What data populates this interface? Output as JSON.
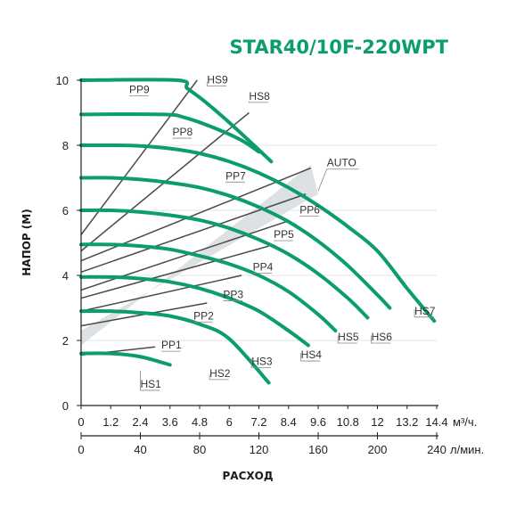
{
  "chart_data": {
    "type": "line",
    "title": "STAR40/10F-220WPT",
    "xlabel": "РАСХОД",
    "ylabel": "НАПОР (М)",
    "x_unit": "м³/ч.",
    "x2_unit": "л/мин.",
    "xlim": [
      0,
      14.4
    ],
    "ylim": [
      0,
      10
    ],
    "x_ticks": [
      "0",
      "1.2",
      "2.4",
      "3.6",
      "4.8",
      "6",
      "7.2",
      "8.4",
      "9.6",
      "10.8",
      "12",
      "13.2",
      "14.4"
    ],
    "x2_ticks": [
      "0",
      "40",
      "80",
      "120",
      "160",
      "200",
      "240"
    ],
    "x2_values": [
      0,
      40,
      80,
      120,
      160,
      200,
      240
    ],
    "y_ticks": [
      "0",
      "2",
      "4",
      "6",
      "8",
      "10"
    ],
    "auto_label": "AUTO",
    "auto_region": [
      [
        0,
        1.85
      ],
      [
        9.3,
        7.4
      ],
      [
        9.6,
        6.5
      ],
      [
        0,
        2.3
      ]
    ],
    "hs_series": [
      {
        "name": "HS1",
        "points": [
          [
            0,
            1.6
          ],
          [
            1.2,
            1.6
          ],
          [
            2.4,
            1.5
          ],
          [
            3.6,
            1.25
          ]
        ]
      },
      {
        "name": "HS2",
        "points": [
          [
            0,
            2.9
          ],
          [
            1.2,
            2.9
          ],
          [
            2.4,
            2.85
          ],
          [
            3.6,
            2.75
          ],
          [
            4.8,
            2.5
          ],
          [
            6,
            2.05
          ],
          [
            7.6,
            0.7
          ]
        ]
      },
      {
        "name": "HS3",
        "points": [
          [
            0,
            3.95
          ],
          [
            1.2,
            3.95
          ],
          [
            2.4,
            3.9
          ],
          [
            3.6,
            3.8
          ],
          [
            4.8,
            3.6
          ],
          [
            6,
            3.3
          ],
          [
            7.2,
            2.9
          ],
          [
            8.4,
            2.3
          ],
          [
            9.2,
            1.85
          ]
        ]
      },
      {
        "name": "HS4",
        "points": [
          [
            0,
            4.95
          ],
          [
            1.2,
            4.95
          ],
          [
            2.4,
            4.9
          ],
          [
            3.6,
            4.8
          ],
          [
            4.8,
            4.6
          ],
          [
            6,
            4.35
          ],
          [
            7.2,
            4
          ],
          [
            8.4,
            3.5
          ],
          [
            9.6,
            2.8
          ],
          [
            10.3,
            2.3
          ]
        ]
      },
      {
        "name": "HS5",
        "points": [
          [
            0,
            6
          ],
          [
            1.2,
            6
          ],
          [
            2.4,
            5.95
          ],
          [
            3.6,
            5.85
          ],
          [
            4.8,
            5.7
          ],
          [
            6,
            5.45
          ],
          [
            7.2,
            5.1
          ],
          [
            8.4,
            4.65
          ],
          [
            9.6,
            4.05
          ],
          [
            10.8,
            3.3
          ],
          [
            11.6,
            2.7
          ]
        ]
      },
      {
        "name": "HS6",
        "points": [
          [
            0,
            7
          ],
          [
            1.2,
            7
          ],
          [
            2.4,
            6.95
          ],
          [
            3.6,
            6.85
          ],
          [
            4.8,
            6.7
          ],
          [
            6,
            6.45
          ],
          [
            7.2,
            6.1
          ],
          [
            8.4,
            5.65
          ],
          [
            9.6,
            5.05
          ],
          [
            10.8,
            4.3
          ],
          [
            12,
            3.4
          ],
          [
            12.5,
            3.0
          ]
        ]
      },
      {
        "name": "HS7",
        "points": [
          [
            0,
            8
          ],
          [
            1.2,
            8
          ],
          [
            2.4,
            7.98
          ],
          [
            3.6,
            7.9
          ],
          [
            4.8,
            7.75
          ],
          [
            6,
            7.5
          ],
          [
            7.2,
            7.15
          ],
          [
            8.4,
            6.7
          ],
          [
            9.6,
            6.15
          ],
          [
            10.8,
            5.5
          ],
          [
            12,
            4.75
          ],
          [
            13.2,
            3.6
          ],
          [
            14.3,
            2.6
          ]
        ]
      },
      {
        "name": "HS8",
        "points": [
          [
            0,
            8.95
          ],
          [
            3.3,
            8.95
          ],
          [
            4.2,
            8.85
          ],
          [
            5.5,
            8.5
          ],
          [
            6.5,
            8.15
          ],
          [
            7.2,
            7.8
          ]
        ]
      },
      {
        "name": "HS9",
        "points": [
          [
            0,
            10
          ],
          [
            3.9,
            10
          ],
          [
            4.3,
            9.75
          ],
          [
            5.0,
            9.35
          ],
          [
            6.0,
            8.7
          ],
          [
            7.0,
            8.0
          ],
          [
            7.7,
            7.5
          ]
        ]
      }
    ],
    "hs_label_positions": {
      "HS1": {
        "point": [
          2.4,
          1.08
        ],
        "text": [
          2.4,
          0.55
        ]
      },
      "HS2": {
        "point": [
          5.2,
          0.95
        ],
        "text": [
          5.2,
          0.88
        ]
      },
      "HS3": {
        "point": [
          6.9,
          1.45
        ],
        "text": [
          6.9,
          1.25
        ]
      },
      "HS4": {
        "point": [
          8.9,
          1.62
        ],
        "text": [
          8.9,
          1.45
        ]
      },
      "HS5": {
        "point": [
          10.4,
          2.15
        ],
        "text": [
          10.4,
          2.0
        ]
      },
      "HS6": {
        "point": [
          11.75,
          2.15
        ],
        "text": [
          11.75,
          2.0
        ]
      },
      "HS7": {
        "point": [
          13.5,
          2.95
        ],
        "text": [
          13.5,
          2.8
        ]
      },
      "HS8": {
        "point": [
          6.8,
          9.35
        ],
        "text": [
          6.8,
          9.4
        ]
      },
      "HS9": {
        "point": [
          5.1,
          9.95
        ],
        "text": [
          5.1,
          9.9
        ]
      }
    },
    "pp_series": [
      {
        "name": "PP1",
        "points": [
          [
            0,
            1.55
          ],
          [
            3.0,
            1.8
          ]
        ]
      },
      {
        "name": "PP2",
        "points": [
          [
            0,
            2.45
          ],
          [
            5.1,
            3.15
          ]
        ]
      },
      {
        "name": "PP3",
        "points": [
          [
            0,
            2.9
          ],
          [
            6.5,
            4.0
          ]
        ]
      },
      {
        "name": "PP4",
        "points": [
          [
            0,
            3.3
          ],
          [
            7.6,
            4.9
          ]
        ]
      },
      {
        "name": "PP5",
        "points": [
          [
            0,
            3.55
          ],
          [
            8.3,
            5.65
          ]
        ]
      },
      {
        "name": "PP6",
        "points": [
          [
            0,
            4.1
          ],
          [
            9.1,
            6.5
          ]
        ]
      },
      {
        "name": "PP7",
        "points": [
          [
            0,
            4.45
          ],
          [
            9.3,
            7.3
          ]
        ]
      },
      {
        "name": "PP8",
        "points": [
          [
            0,
            4.75
          ],
          [
            6.8,
            9.0
          ]
        ]
      },
      {
        "name": "PP9",
        "points": [
          [
            0,
            5.25
          ],
          [
            4.7,
            10.0
          ]
        ]
      }
    ],
    "pp_label_positions": {
      "PP1": {
        "point": [
          3.2,
          1.75
        ],
        "text": [
          3.25,
          1.75
        ]
      },
      "PP2": {
        "point": [
          4.5,
          2.8
        ],
        "text": [
          4.55,
          2.65
        ]
      },
      "PP3": {
        "point": [
          5.5,
          3.5
        ],
        "text": [
          5.75,
          3.3
        ]
      },
      "PP4": {
        "point": [
          6.8,
          4.3
        ],
        "text": [
          6.95,
          4.15
        ]
      },
      "PP5": {
        "point": [
          7.6,
          5.2
        ],
        "text": [
          7.8,
          5.15
        ]
      },
      "PP6": {
        "point": [
          8.6,
          6.0
        ],
        "text": [
          8.85,
          5.9
        ]
      },
      "PP7": {
        "point": [
          5.8,
          6.95
        ],
        "text": [
          5.85,
          6.95
        ]
      },
      "PP8": {
        "point": [
          3.6,
          8.4
        ],
        "text": [
          3.7,
          8.3
        ]
      },
      "PP9": {
        "point": [
          1.9,
          9.6
        ],
        "text": [
          1.95,
          9.6
        ]
      }
    },
    "colors": {
      "hs_curve": "#0b9d6d",
      "title": "#0b9d6d",
      "pp_line": "#4a4a4a",
      "auto_band": "#d8dcdf",
      "axis": "#222222",
      "gridline": "#e3e3e3",
      "label": "#333333"
    }
  }
}
